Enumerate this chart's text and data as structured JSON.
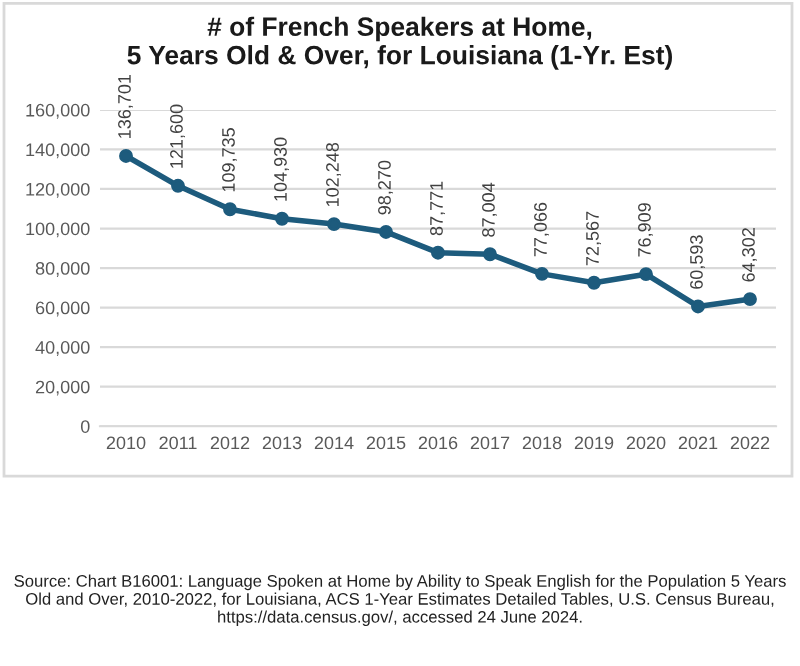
{
  "chart_data": {
    "type": "line",
    "title": "# of French Speakers at Home,\n5 Years Old & Over, for Louisiana (1-Yr. Est)",
    "categories": [
      "2010",
      "2011",
      "2012",
      "2013",
      "2014",
      "2015",
      "2016",
      "2017",
      "2018",
      "2019",
      "2020",
      "2021",
      "2022"
    ],
    "series": [
      {
        "color": "#1d5b7d",
        "values": [
          136701,
          121600,
          109735,
          104930,
          102248,
          98270,
          87771,
          87004,
          77066,
          72567,
          76909,
          60593,
          64302
        ]
      }
    ],
    "value_labels": [
      "136,701",
      "121,600",
      "109,735",
      "104,930",
      "102,248",
      "98,270",
      "87,771",
      "87,004",
      "77,066",
      "72,567",
      "76,909",
      "60,593",
      "64,302"
    ],
    "ylim": [
      0,
      160000
    ],
    "yticks": [
      {
        "value": 0,
        "label": "0"
      },
      {
        "value": 20000,
        "label": "20,000"
      },
      {
        "value": 40000,
        "label": "40,000"
      },
      {
        "value": 60000,
        "label": "60,000"
      },
      {
        "value": 80000,
        "label": "80,000"
      },
      {
        "value": 100000,
        "label": "100,000"
      },
      {
        "value": 120000,
        "label": "120,000"
      },
      {
        "value": 140000,
        "label": "140,000"
      },
      {
        "value": 160000,
        "label": "160,000"
      }
    ],
    "grid": "y",
    "marker": "circle",
    "line_style": "solid",
    "legend": false,
    "annotations": [
      "Source: Chart B16001: Language Spoken at Home by Ability to Speak English for the Population 5 Years Old and Over, 2010-2022, for Louisiana, ACS 1-Year Estimates Detailed Tables, U.S. Census Bureau, https://data.census.gov/, accessed 24 June 2024."
    ]
  }
}
